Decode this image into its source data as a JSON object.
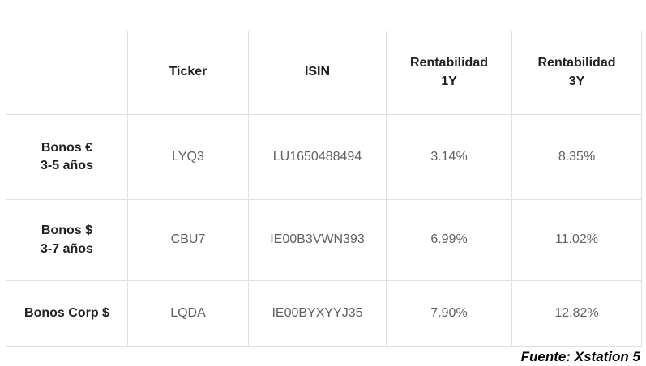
{
  "chart_data": {
    "type": "table",
    "title": "",
    "columns": [
      "",
      "Ticker",
      "ISIN",
      "Rentabilidad\n1Y",
      "Rentabilidad\n3Y"
    ],
    "rows": [
      {
        "label": "Bonos €\n3-5 años",
        "ticker": "LYQ3",
        "isin": "LU1650488494",
        "rentabilidad_1y": "3.14%",
        "rentabilidad_3y": "8.35%"
      },
      {
        "label": "Bonos $\n3-7 años",
        "ticker": "CBU7",
        "isin": "IE00B3VWN393",
        "rentabilidad_1y": "6.99%",
        "rentabilidad_3y": "11.02%"
      },
      {
        "label": "Bonos Corp $",
        "ticker": "LQDA",
        "isin": "IE00BYXYYJ35",
        "rentabilidad_1y": "7.90%",
        "rentabilidad_3y": "12.82%"
      }
    ],
    "footer_source": "Fuente: Xstation 5",
    "layout": {
      "grid": "on",
      "header_row_bold": true,
      "row_header_bold": true
    },
    "colors": {
      "background": "#ffffff",
      "grid_line": "#e0e0e0",
      "header_text": "#212121",
      "cell_text": "#616161",
      "footer_text": "#000000"
    }
  }
}
